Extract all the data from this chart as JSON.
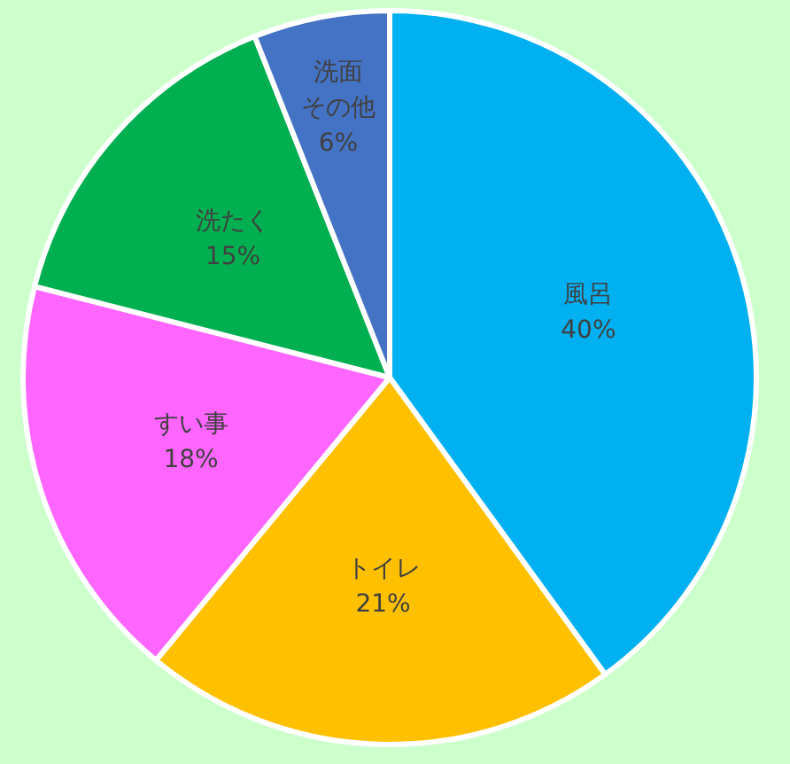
{
  "chart_data": {
    "type": "pie",
    "categories": [
      "風呂",
      "トイレ",
      "すい事",
      "洗たく",
      "洗面その他"
    ],
    "values": [
      40,
      21,
      18,
      15,
      6
    ],
    "colors": [
      "#00b0f0",
      "#ffc000",
      "#ff66ff",
      "#00b050",
      "#4472c4"
    ],
    "value_labels": [
      "40%",
      "21%",
      "18%",
      "15%",
      "6%"
    ]
  }
}
